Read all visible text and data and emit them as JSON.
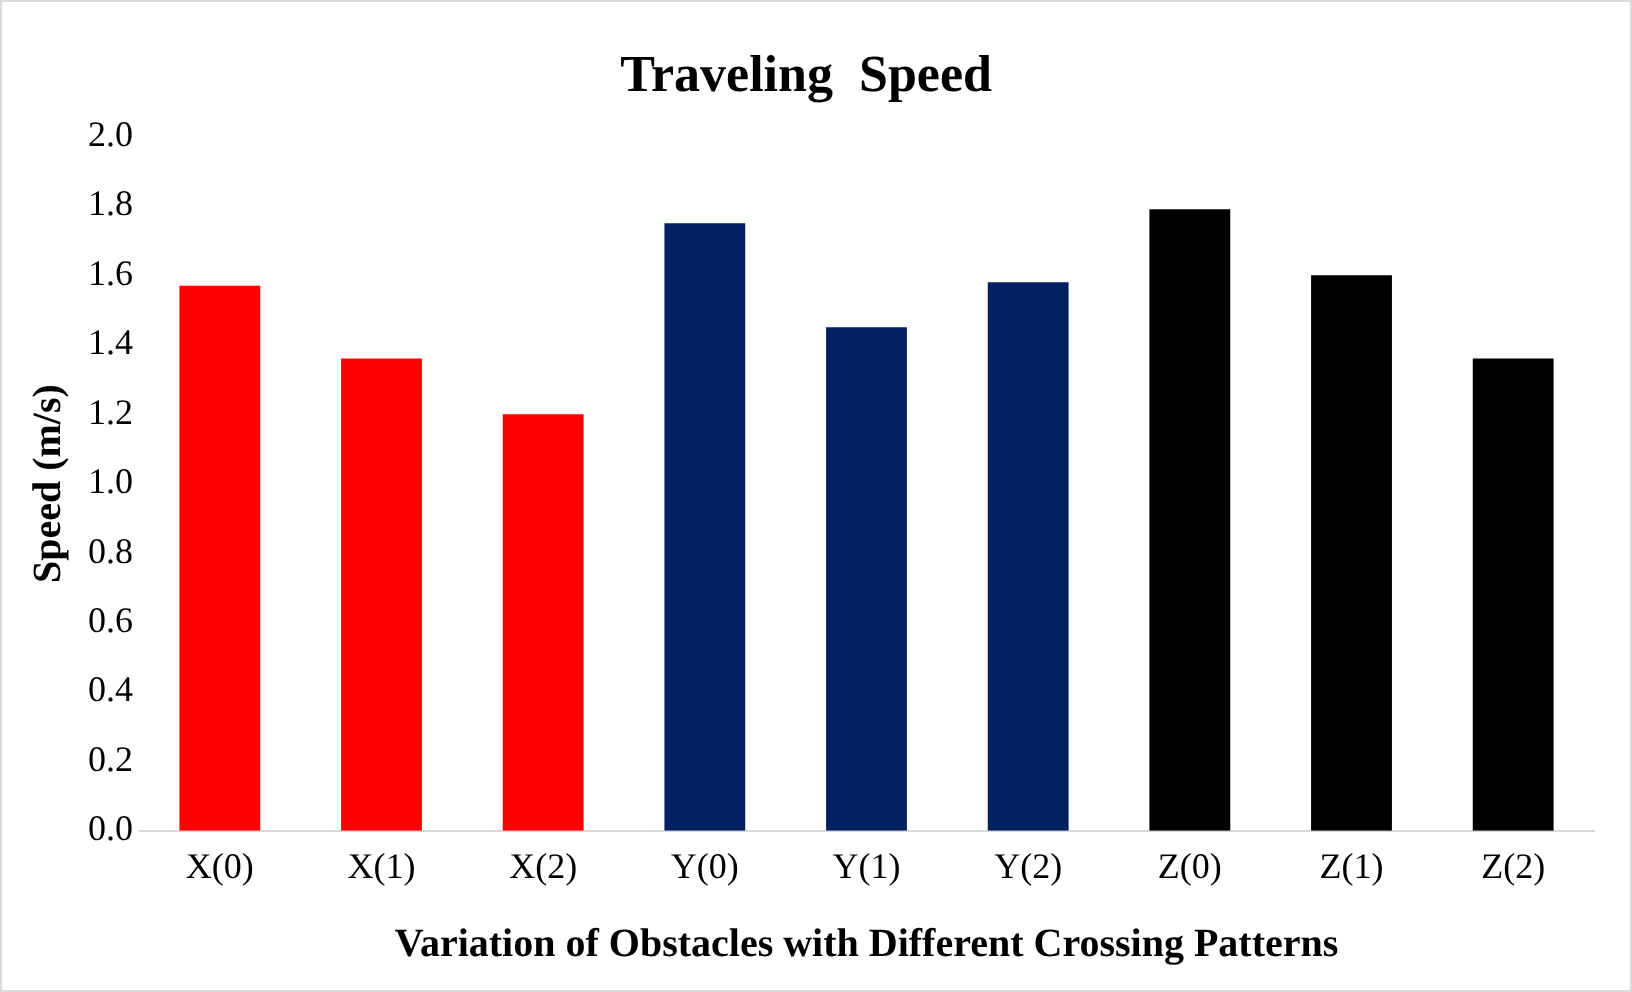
{
  "chart_data": {
    "type": "bar",
    "title": "Traveling  Speed",
    "xlabel": "Variation of Obstacles with Different Crossing Patterns",
    "ylabel": "Speed (m/s)",
    "categories": [
      "X(0)",
      "X(1)",
      "X(2)",
      "Y(0)",
      "Y(1)",
      "Y(2)",
      "Z(0)",
      "Z(1)",
      "Z(2)"
    ],
    "values": [
      1.57,
      1.36,
      1.2,
      1.75,
      1.45,
      1.58,
      1.79,
      1.6,
      1.36
    ],
    "colors": [
      "#ff0000",
      "#ff0000",
      "#ff0000",
      "#002060",
      "#002060",
      "#002060",
      "#000000",
      "#000000",
      "#000000"
    ],
    "ylim": [
      0,
      2
    ],
    "yticks": [
      {
        "value": 0,
        "label": "0.0"
      },
      {
        "value": 0.2,
        "label": "0.2"
      },
      {
        "value": 0.4,
        "label": "0.4"
      },
      {
        "value": 0.6,
        "label": "0.6"
      },
      {
        "value": 0.8,
        "label": "0.8"
      },
      {
        "value": 1,
        "label": "1.0"
      },
      {
        "value": 1.2,
        "label": "1.2"
      },
      {
        "value": 1.4,
        "label": "1.4"
      },
      {
        "value": 1.6,
        "label": "1.6"
      },
      {
        "value": 1.8,
        "label": "1.8"
      },
      {
        "value": 2,
        "label": "2.0"
      }
    ],
    "grid": false,
    "legend": false
  }
}
